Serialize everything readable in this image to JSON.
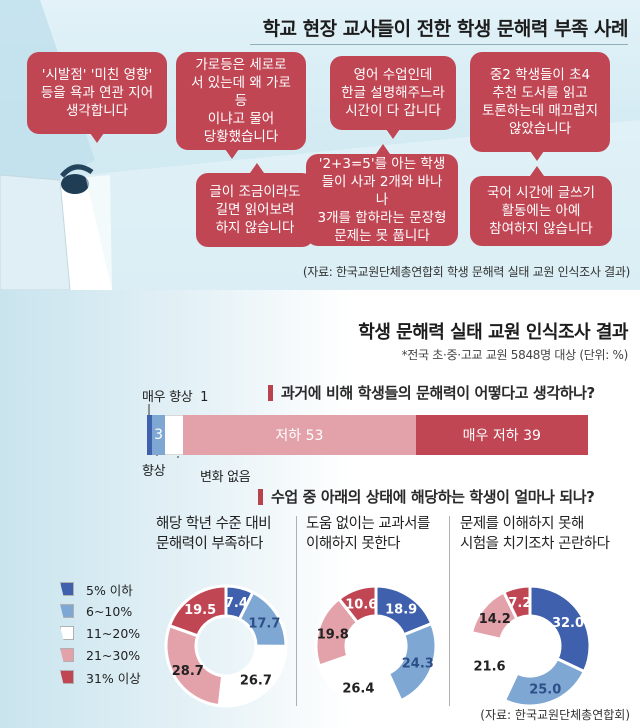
{
  "top": {
    "title": "학교 현장 교사들이 전한 학생 문해력 부족 사례",
    "bubbles": [
      "'시발점' '미친 영향'\n등을 욕과 연관 지어\n생각합니다",
      "가로등은 세로로\n서 있는데 왜 가로등\n이냐고 물어\n당황했습니다",
      "영어 수업인데\n한글 설명해주느라\n시간이 다 갑니다",
      "중2 학생들이 초4\n추천 도서를 읽고\n토론하는데 매끄럽지\n않았습니다",
      "글이 조금이라도\n길면 읽어보려\n하지 않습니다",
      "'2+3=5'를 아는 학생\n들이 사과 2개와 바나나\n3개를 합하라는 문장형\n문제는 못 풉니다",
      "국어 시간에 글쓰기\n활동에는 아예\n참여하지 않습니다"
    ],
    "source": "(자료: 한국교원단체총연합회 학생 문해력 실태 교원 인식조사 결과)"
  },
  "title": "학생 문해력 실태 교원 인식조사 결과",
  "note": "*전국 초·중·고교 교원 5848명 대상 (단위: %)",
  "colors": {
    "accent": "#b8434f",
    "c1": "#3f60ad",
    "c2": "#7ea7d3",
    "c3": "#ffffff",
    "c4": "#e3a1aa",
    "c5": "#c14654"
  },
  "chart_data": [
    {
      "type": "bar",
      "title": "과거에 비해 학생들의 문해력이 어떻다고 생각하나?",
      "series": [
        {
          "name": "매우 향상",
          "value": 1
        },
        {
          "name": "향상",
          "value": 3
        },
        {
          "name": "변화 없음",
          "value": 4
        },
        {
          "name": "저하",
          "value": 53
        },
        {
          "name": "매우 저하",
          "value": 39
        }
      ],
      "labels": {
        "very_improved": "매우 향상",
        "very_improved_value": "1",
        "improved": "향상",
        "improved_value": "3",
        "no_change": "변화 없음",
        "declined": "저하 53",
        "very_declined": "매우 저하 39"
      }
    },
    {
      "type": "pie",
      "title": "수업 중 아래의 상태에 해당하는 학생이 얼마나 되나?",
      "legend": [
        "5% 이하",
        "6~10%",
        "11~20%",
        "21~30%",
        "31% 이상"
      ],
      "donuts": [
        {
          "title": "해당 학년 수준 대비\n문해력이 부족하다",
          "values": [
            7.4,
            17.7,
            26.7,
            28.7,
            19.5
          ],
          "labels": [
            "7.4",
            "17.7",
            "26.7",
            "28.7",
            "19.5"
          ]
        },
        {
          "title": "도움 없이는 교과서를\n이해하지 못한다",
          "values": [
            18.9,
            24.3,
            26.4,
            19.8,
            10.6
          ],
          "labels": [
            "18.9",
            "24.3",
            "26.4",
            "19.8",
            "10.6"
          ]
        },
        {
          "title": "문제를 이해하지 못해\n시험을 치기조차 곤란하다",
          "values": [
            32.0,
            25.0,
            21.6,
            14.2,
            7.2
          ],
          "labels": [
            "32.0",
            "25.0",
            "21.6",
            "14.2",
            "7.2"
          ]
        }
      ]
    }
  ],
  "source": "(자료: 한국교원단체총연합회)"
}
